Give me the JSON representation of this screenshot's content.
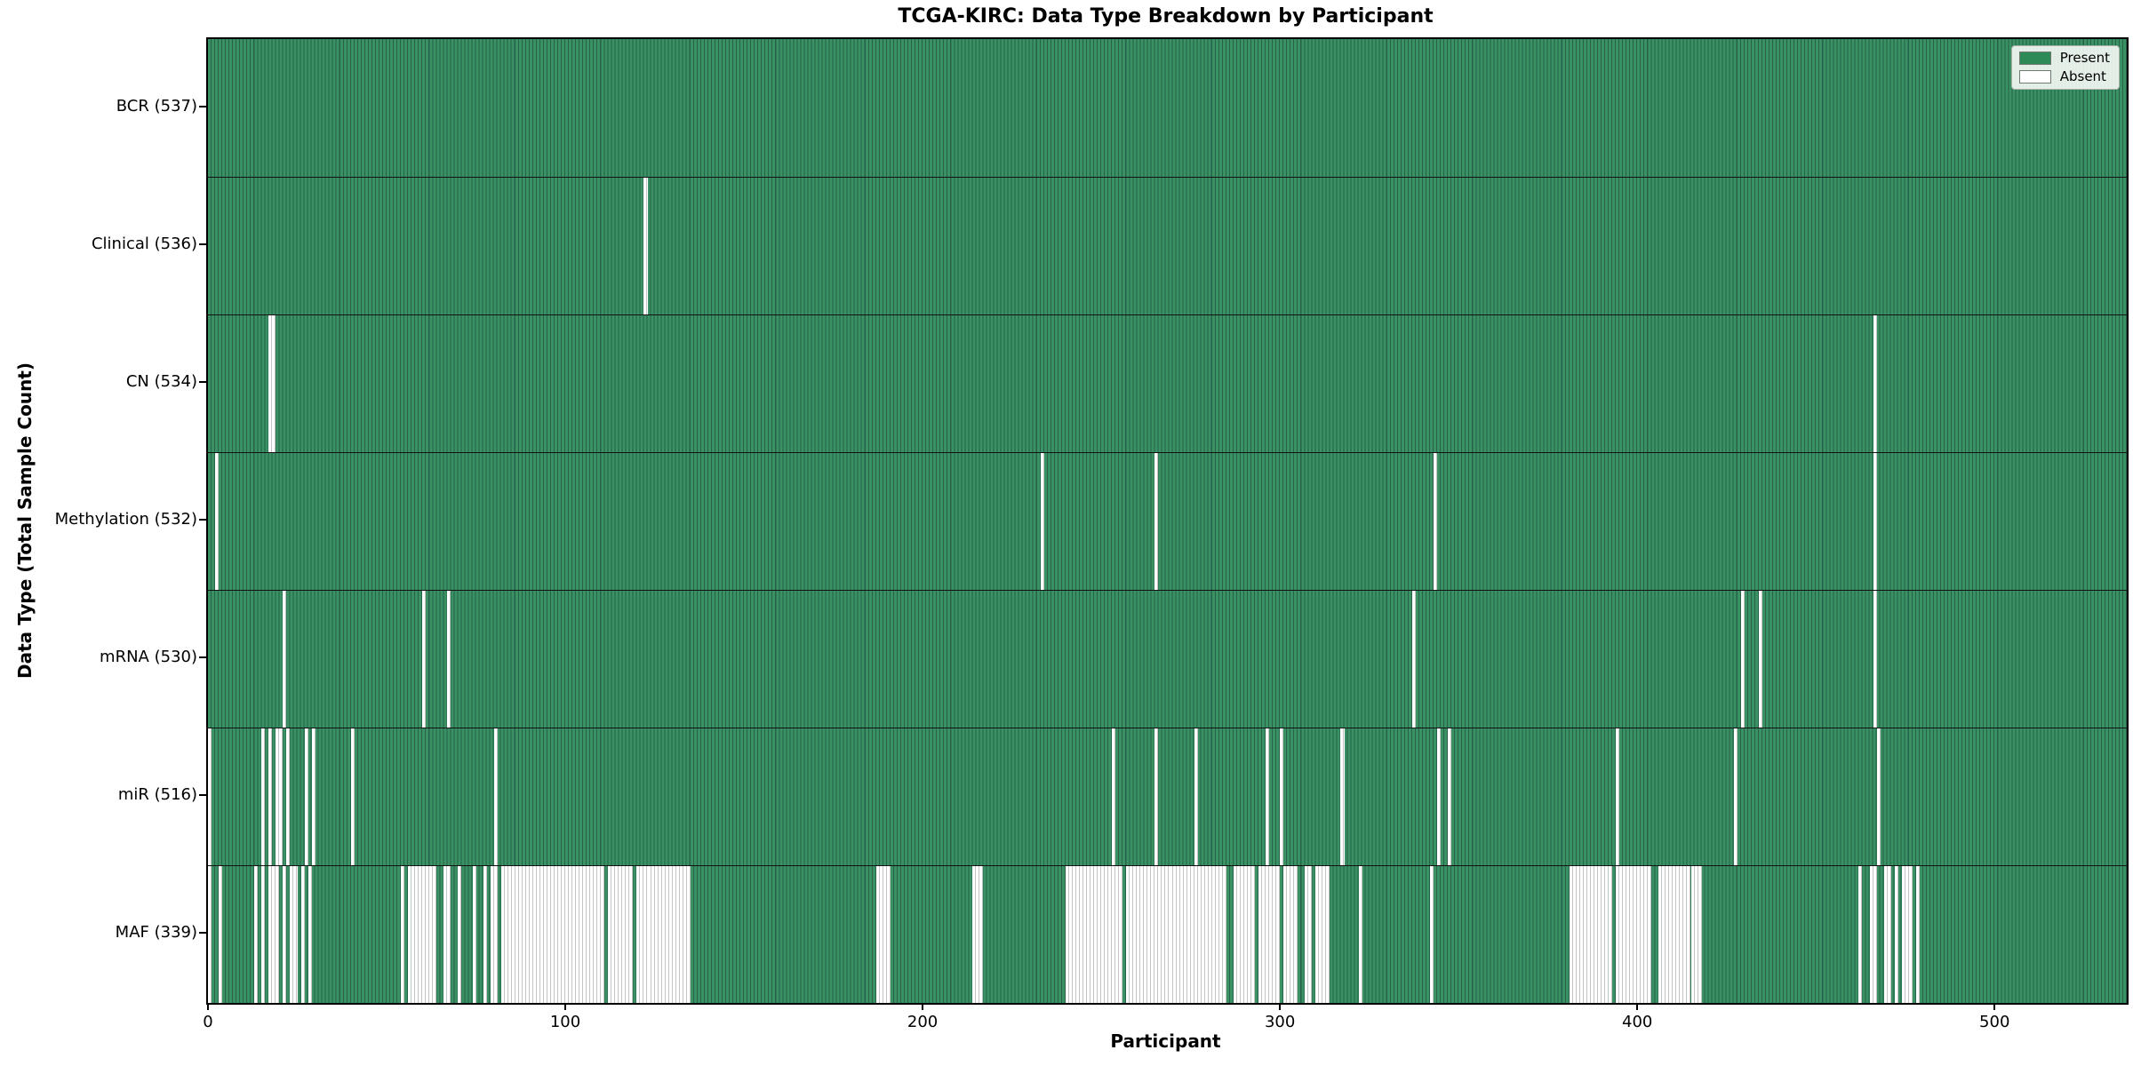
{
  "title": "TCGA-KIRC: Data Type Breakdown by Participant",
  "x_axis_label": "Participant",
  "y_axis_label": "Data Type (Total Sample Count)",
  "legend": {
    "present_label": "Present",
    "absent_label": "Absent"
  },
  "colors": {
    "present": "#2e8b57",
    "present_stripe": "#27614a",
    "absent": "#ffffff",
    "absent_stripe": "#c4c4c4",
    "plot_border": "#000000",
    "row_divider": "#111111"
  },
  "chart_data": {
    "type": "heatmap",
    "title": "TCGA-KIRC: Data Type Breakdown by Participant",
    "xlabel": "Participant",
    "ylabel": "Data Type (Total Sample Count)",
    "legend_entries": [
      "Present",
      "Absent"
    ],
    "legend_position": "upper right",
    "grid": false,
    "x_range": [
      0,
      537
    ],
    "total_participants": 537,
    "x_ticks": [
      0,
      100,
      200,
      300,
      400,
      500
    ],
    "rows": [
      {
        "name": "BCR",
        "label": "BCR (537)",
        "present_count": 537,
        "absent_participants": []
      },
      {
        "name": "Clinical",
        "label": "Clinical (536)",
        "present_count": 536,
        "absent_participants": [
          122
        ]
      },
      {
        "name": "CN",
        "label": "CN (534)",
        "present_count": 534,
        "absent_participants": [
          17,
          18,
          466
        ]
      },
      {
        "name": "Methylation",
        "label": "Methylation (532)",
        "present_count": 532,
        "absent_participants": [
          2,
          233,
          265,
          343,
          466
        ]
      },
      {
        "name": "mRNA",
        "label": "mRNA (530)",
        "present_count": 530,
        "absent_participants": [
          21,
          60,
          67,
          337,
          429,
          434,
          466
        ]
      },
      {
        "name": "miR",
        "label": "miR (516)",
        "present_count": 516,
        "absent_participants": [
          0,
          15,
          17,
          19,
          20,
          22,
          27,
          29,
          40,
          80,
          253,
          265,
          276,
          296,
          300,
          317,
          344,
          347,
          394,
          427,
          467
        ]
      },
      {
        "name": "MAF",
        "label": "MAF (339)",
        "present_count": 339,
        "absent_participants": [
          0,
          3,
          13,
          15,
          17,
          18,
          19,
          21,
          23,
          24,
          26,
          28,
          54,
          56,
          57,
          58,
          59,
          60,
          61,
          62,
          63,
          66,
          67,
          70,
          74,
          77,
          79,
          80,
          82,
          83,
          84,
          85,
          86,
          87,
          88,
          89,
          90,
          91,
          92,
          93,
          94,
          95,
          96,
          97,
          98,
          99,
          100,
          101,
          102,
          103,
          104,
          105,
          106,
          107,
          108,
          109,
          110,
          112,
          113,
          114,
          115,
          116,
          117,
          118,
          120,
          121,
          122,
          123,
          124,
          125,
          126,
          127,
          128,
          129,
          130,
          131,
          132,
          133,
          134,
          187,
          188,
          189,
          190,
          214,
          215,
          216,
          240,
          241,
          242,
          243,
          244,
          245,
          246,
          247,
          248,
          249,
          250,
          251,
          252,
          253,
          254,
          255,
          257,
          258,
          259,
          260,
          261,
          262,
          263,
          264,
          265,
          266,
          267,
          268,
          269,
          270,
          271,
          272,
          273,
          274,
          275,
          276,
          277,
          278,
          279,
          280,
          281,
          282,
          283,
          284,
          287,
          288,
          289,
          290,
          291,
          292,
          294,
          295,
          296,
          297,
          298,
          299,
          301,
          302,
          303,
          304,
          307,
          308,
          310,
          311,
          312,
          313,
          322,
          342,
          381,
          382,
          383,
          384,
          385,
          386,
          387,
          388,
          389,
          390,
          391,
          392,
          394,
          395,
          396,
          397,
          398,
          399,
          400,
          401,
          402,
          403,
          406,
          407,
          408,
          409,
          410,
          411,
          412,
          413,
          414,
          415,
          416,
          417,
          462,
          465,
          466,
          469,
          470,
          472,
          474,
          475,
          476,
          478
        ]
      }
    ]
  }
}
